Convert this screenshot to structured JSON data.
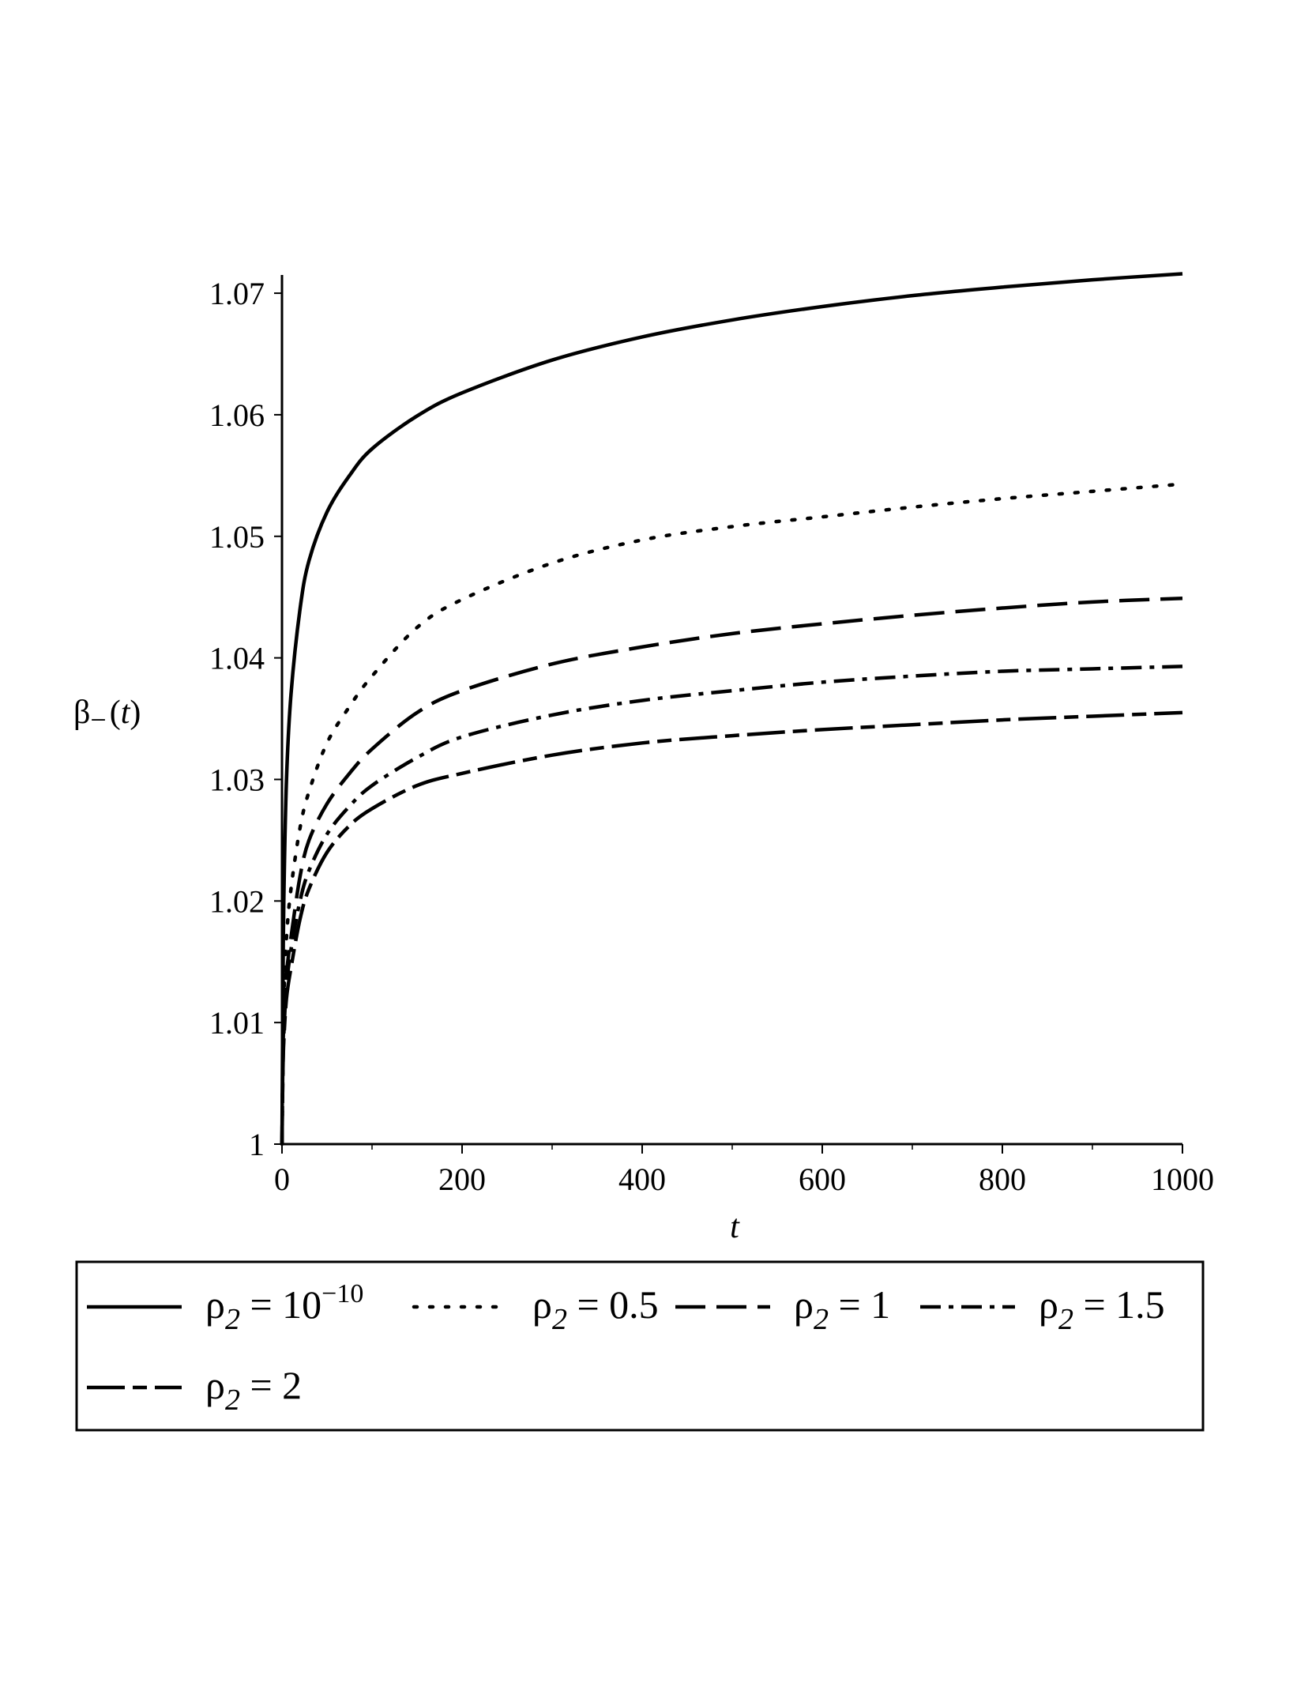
{
  "chart_data": {
    "type": "line",
    "title": "",
    "xlabel": "t",
    "ylabel": {
      "symbol": "β",
      "subscript": "−",
      "argument": "(t)",
      "arg_open": "(",
      "arg_var": "t",
      "arg_close": ")"
    },
    "xlim": [
      0,
      1000
    ],
    "ylim": [
      1.0,
      1.0715
    ],
    "x_ticks": [
      0,
      200,
      400,
      600,
      800,
      1000
    ],
    "x_tick_labels": [
      "0",
      "200",
      "400",
      "600",
      "800",
      "1000"
    ],
    "x_minor_ticks": [
      100,
      300,
      500,
      700,
      900
    ],
    "y_ticks": [
      1.0,
      1.01,
      1.02,
      1.03,
      1.04,
      1.05,
      1.06,
      1.07
    ],
    "y_tick_labels": [
      "1",
      "1.01",
      "1.02",
      "1.03",
      "1.04",
      "1.05",
      "1.06",
      "1.07"
    ],
    "grid": false,
    "legend_placement": "bottom",
    "x": [
      0,
      1,
      2,
      5,
      10,
      20,
      30,
      50,
      75,
      100,
      150,
      200,
      300,
      400,
      500,
      600,
      700,
      800,
      900,
      1000
    ],
    "series": [
      {
        "name": "ρ2 = 10^−10",
        "style": "solid",
        "values": [
          1.0,
          1.012,
          1.02,
          1.03,
          1.037,
          1.044,
          1.048,
          1.052,
          1.055,
          1.0572,
          1.0599,
          1.0618,
          1.0645,
          1.0664,
          1.0678,
          1.0689,
          1.0698,
          1.0705,
          1.0711,
          1.0716
        ]
      },
      {
        "name": "ρ2 = 0.5",
        "style": "dotted",
        "values": [
          1.0,
          1.008,
          1.012,
          1.017,
          1.021,
          1.026,
          1.029,
          1.033,
          1.036,
          1.0385,
          1.0425,
          1.0448,
          1.0478,
          1.0497,
          1.0508,
          1.0516,
          1.0524,
          1.0531,
          1.0537,
          1.0543
        ]
      },
      {
        "name": "ρ2 = 1",
        "style": "dashed",
        "values": [
          1.0,
          1.007,
          1.01,
          1.014,
          1.017,
          1.022,
          1.025,
          1.028,
          1.0305,
          1.0325,
          1.0355,
          1.0373,
          1.0395,
          1.0409,
          1.042,
          1.0428,
          1.0435,
          1.0441,
          1.0446,
          1.0449
        ]
      },
      {
        "name": "ρ2 = 1.5",
        "style": "dashdot",
        "values": [
          1.0,
          1.006,
          1.009,
          1.013,
          1.016,
          1.02,
          1.0225,
          1.0255,
          1.0278,
          1.0295,
          1.0318,
          1.0335,
          1.0353,
          1.0365,
          1.0373,
          1.038,
          1.0385,
          1.0389,
          1.0391,
          1.0393
        ]
      },
      {
        "name": "ρ2 = 2",
        "style": "longdash",
        "values": [
          1.0,
          1.006,
          1.0085,
          1.012,
          1.0145,
          1.0185,
          1.021,
          1.024,
          1.0262,
          1.0276,
          1.0295,
          1.0305,
          1.032,
          1.033,
          1.0336,
          1.0341,
          1.0345,
          1.0349,
          1.0352,
          1.0355
        ]
      }
    ],
    "legend": [
      {
        "symbol": "ρ",
        "sub": "2",
        "eq": "=",
        "value": "10",
        "sup": "−10",
        "style": "solid"
      },
      {
        "symbol": "ρ",
        "sub": "2",
        "eq": "=",
        "value": "0.5",
        "sup": "",
        "style": "dotted"
      },
      {
        "symbol": "ρ",
        "sub": "2",
        "eq": "=",
        "value": "1",
        "sup": "",
        "style": "dashed"
      },
      {
        "symbol": "ρ",
        "sub": "2",
        "eq": "=",
        "value": "1.5",
        "sup": "",
        "style": "dashdot"
      },
      {
        "symbol": "ρ",
        "sub": "2",
        "eq": "=",
        "value": "2",
        "sup": "",
        "style": "longdash"
      }
    ]
  }
}
